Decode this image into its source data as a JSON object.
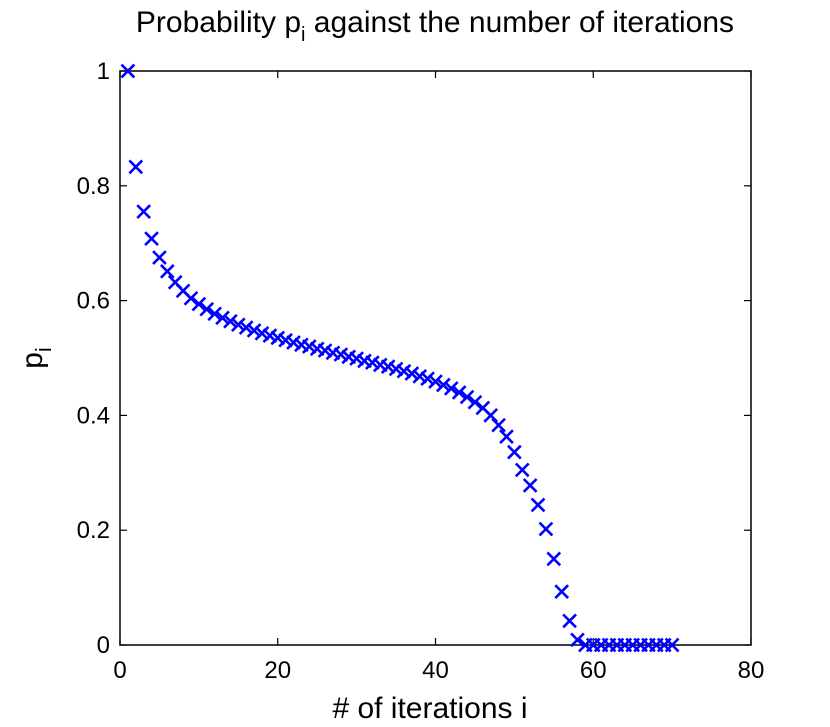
{
  "chart_data": {
    "type": "scatter",
    "title": {
      "main": "Probability p",
      "sub": "i",
      "rest": " against the number of iterations"
    },
    "xlabel": "# of iterations i",
    "ylabel": {
      "main": "p",
      "sub": "i"
    },
    "xlim": [
      0,
      80
    ],
    "ylim": [
      0,
      1
    ],
    "xticks": [
      0,
      20,
      40,
      60,
      80
    ],
    "yticks": [
      0,
      0.2,
      0.4,
      0.6,
      0.8,
      1
    ],
    "ytick_labels": [
      "0",
      "0.2",
      "0.4",
      "0.6",
      "0.8",
      "1"
    ],
    "grid": false,
    "marker": "x",
    "color": "#0000ff",
    "series": [
      {
        "x": [
          1,
          2,
          3,
          4,
          5,
          6,
          7,
          8,
          9,
          10,
          11,
          12,
          13,
          14,
          15,
          16,
          17,
          18,
          19,
          20,
          21,
          22,
          23,
          24,
          25,
          26,
          27,
          28,
          29,
          30,
          31,
          32,
          33,
          34,
          35,
          36,
          37,
          38,
          39,
          40,
          41,
          42,
          43,
          44,
          45,
          46,
          47,
          48,
          49,
          50,
          51,
          52,
          53,
          54,
          55,
          56,
          57,
          58,
          59,
          60,
          61,
          62,
          63,
          64,
          65,
          66,
          67,
          68,
          69,
          70
        ],
        "y": [
          1.0,
          0.833,
          0.755,
          0.708,
          0.675,
          0.651,
          0.632,
          0.617,
          0.604,
          0.594,
          0.585,
          0.577,
          0.57,
          0.564,
          0.558,
          0.553,
          0.548,
          0.543,
          0.539,
          0.535,
          0.531,
          0.527,
          0.523,
          0.52,
          0.516,
          0.513,
          0.509,
          0.506,
          0.502,
          0.499,
          0.495,
          0.492,
          0.488,
          0.485,
          0.481,
          0.477,
          0.473,
          0.468,
          0.464,
          0.459,
          0.453,
          0.447,
          0.44,
          0.432,
          0.423,
          0.413,
          0.4,
          0.383,
          0.363,
          0.336,
          0.305,
          0.278,
          0.244,
          0.202,
          0.15,
          0.093,
          0.042,
          0.009,
          0.0,
          0.0,
          0.0,
          0.0,
          0.0,
          0.0,
          0.0,
          0.0,
          0.0,
          0.0,
          0.0,
          0.0
        ]
      }
    ]
  }
}
